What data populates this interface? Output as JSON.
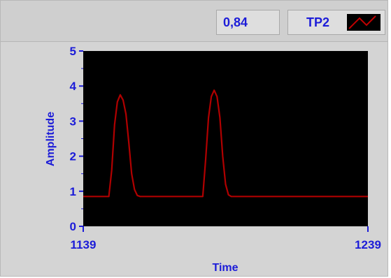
{
  "toolbar": {
    "cursor_value": "0,84",
    "legend_label": "TP2"
  },
  "colors": {
    "plot_background": "#000000",
    "trace": "#b00000",
    "text": "#1c1cd8"
  },
  "chart_data": {
    "type": "line",
    "xlabel": "Time",
    "ylabel": "Amplitude",
    "xlim": [
      1139,
      1239
    ],
    "ylim": [
      0,
      5
    ],
    "x_tick_labels": [
      "1139",
      "1239"
    ],
    "y_tick_labels": [
      "0",
      "1",
      "2",
      "3",
      "4",
      "5"
    ],
    "series": [
      {
        "name": "TP2",
        "x": [
          1139,
          1148,
          1149,
          1150,
          1151,
          1152,
          1153,
          1154,
          1155,
          1156,
          1157,
          1158,
          1159,
          1162,
          1181,
          1182,
          1183,
          1184,
          1185,
          1186,
          1187,
          1188,
          1189,
          1190,
          1191,
          1192,
          1200,
          1239
        ],
        "y": [
          0.85,
          0.85,
          1.6,
          2.9,
          3.55,
          3.75,
          3.6,
          3.2,
          2.4,
          1.5,
          1.05,
          0.88,
          0.85,
          0.85,
          0.85,
          1.9,
          3.1,
          3.7,
          3.88,
          3.7,
          3.1,
          2.0,
          1.2,
          0.9,
          0.85,
          0.85,
          0.85,
          0.85
        ]
      }
    ]
  }
}
